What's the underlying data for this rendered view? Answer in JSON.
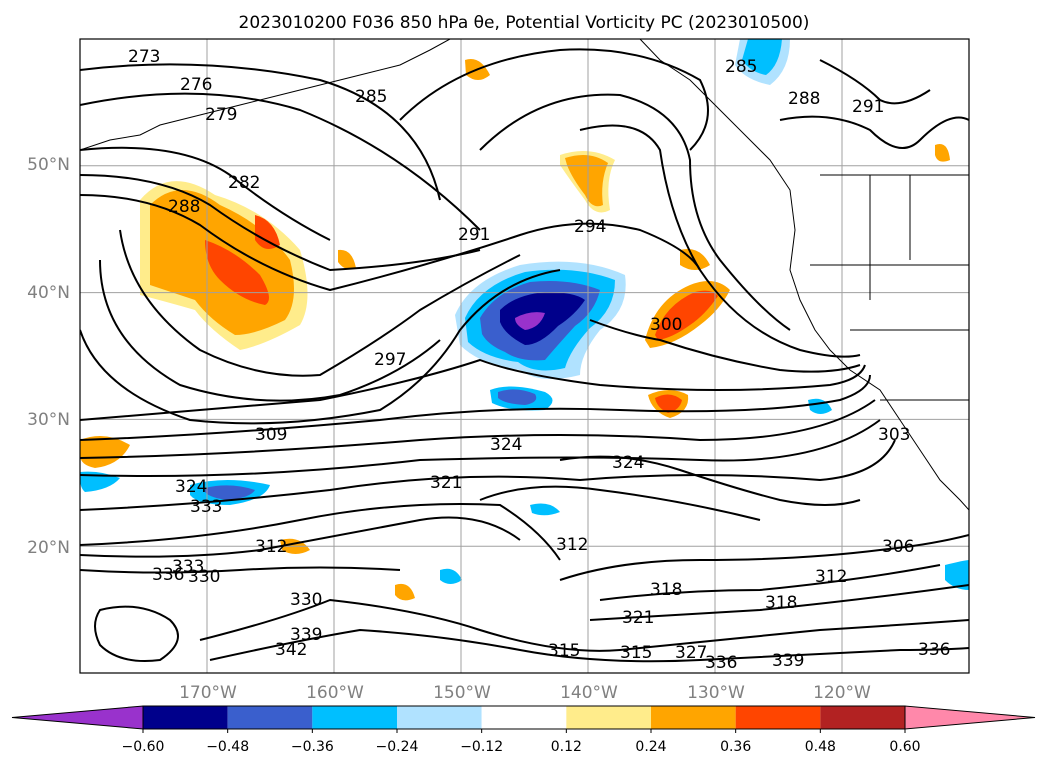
{
  "chart_data": {
    "type": "contour_map",
    "title": "2023010200 F036 850 hPa θe, Potential Vorticity PC (2023010500)",
    "lat_range": [
      10,
      60
    ],
    "lon_range": [
      -180,
      -110
    ],
    "lat_ticks": [
      "50°N",
      "40°N",
      "30°N",
      "20°N"
    ],
    "lon_ticks": [
      "170°W",
      "160°W",
      "150°W",
      "140°W",
      "130°W",
      "120°W"
    ],
    "grid": true,
    "colorbar": {
      "orientation": "horizontal",
      "extend": "both",
      "ticks": [
        "−0.60",
        "−0.48",
        "−0.36",
        "−0.24",
        "−0.12",
        "0.12",
        "0.24",
        "0.36",
        "0.48",
        "0.60"
      ],
      "colors": [
        "#9932cc",
        "#00008b",
        "#3a5fcd",
        "#00bfff",
        "#b0e2ff",
        "#ffffff",
        "#ffec8b",
        "#ffa500",
        "#ff4500",
        "#b22222",
        "#ff88aa"
      ]
    },
    "contour_labels": [
      "273",
      "276",
      "279",
      "282",
      "285",
      "285",
      "288",
      "288",
      "291",
      "291",
      "294",
      "297",
      "300",
      "303",
      "306",
      "309",
      "312",
      "312",
      "312",
      "315",
      "315",
      "318",
      "318",
      "321",
      "321",
      "324",
      "324",
      "324",
      "327",
      "330",
      "330",
      "333",
      "333",
      "336",
      "336",
      "336",
      "339",
      "339",
      "342"
    ]
  }
}
